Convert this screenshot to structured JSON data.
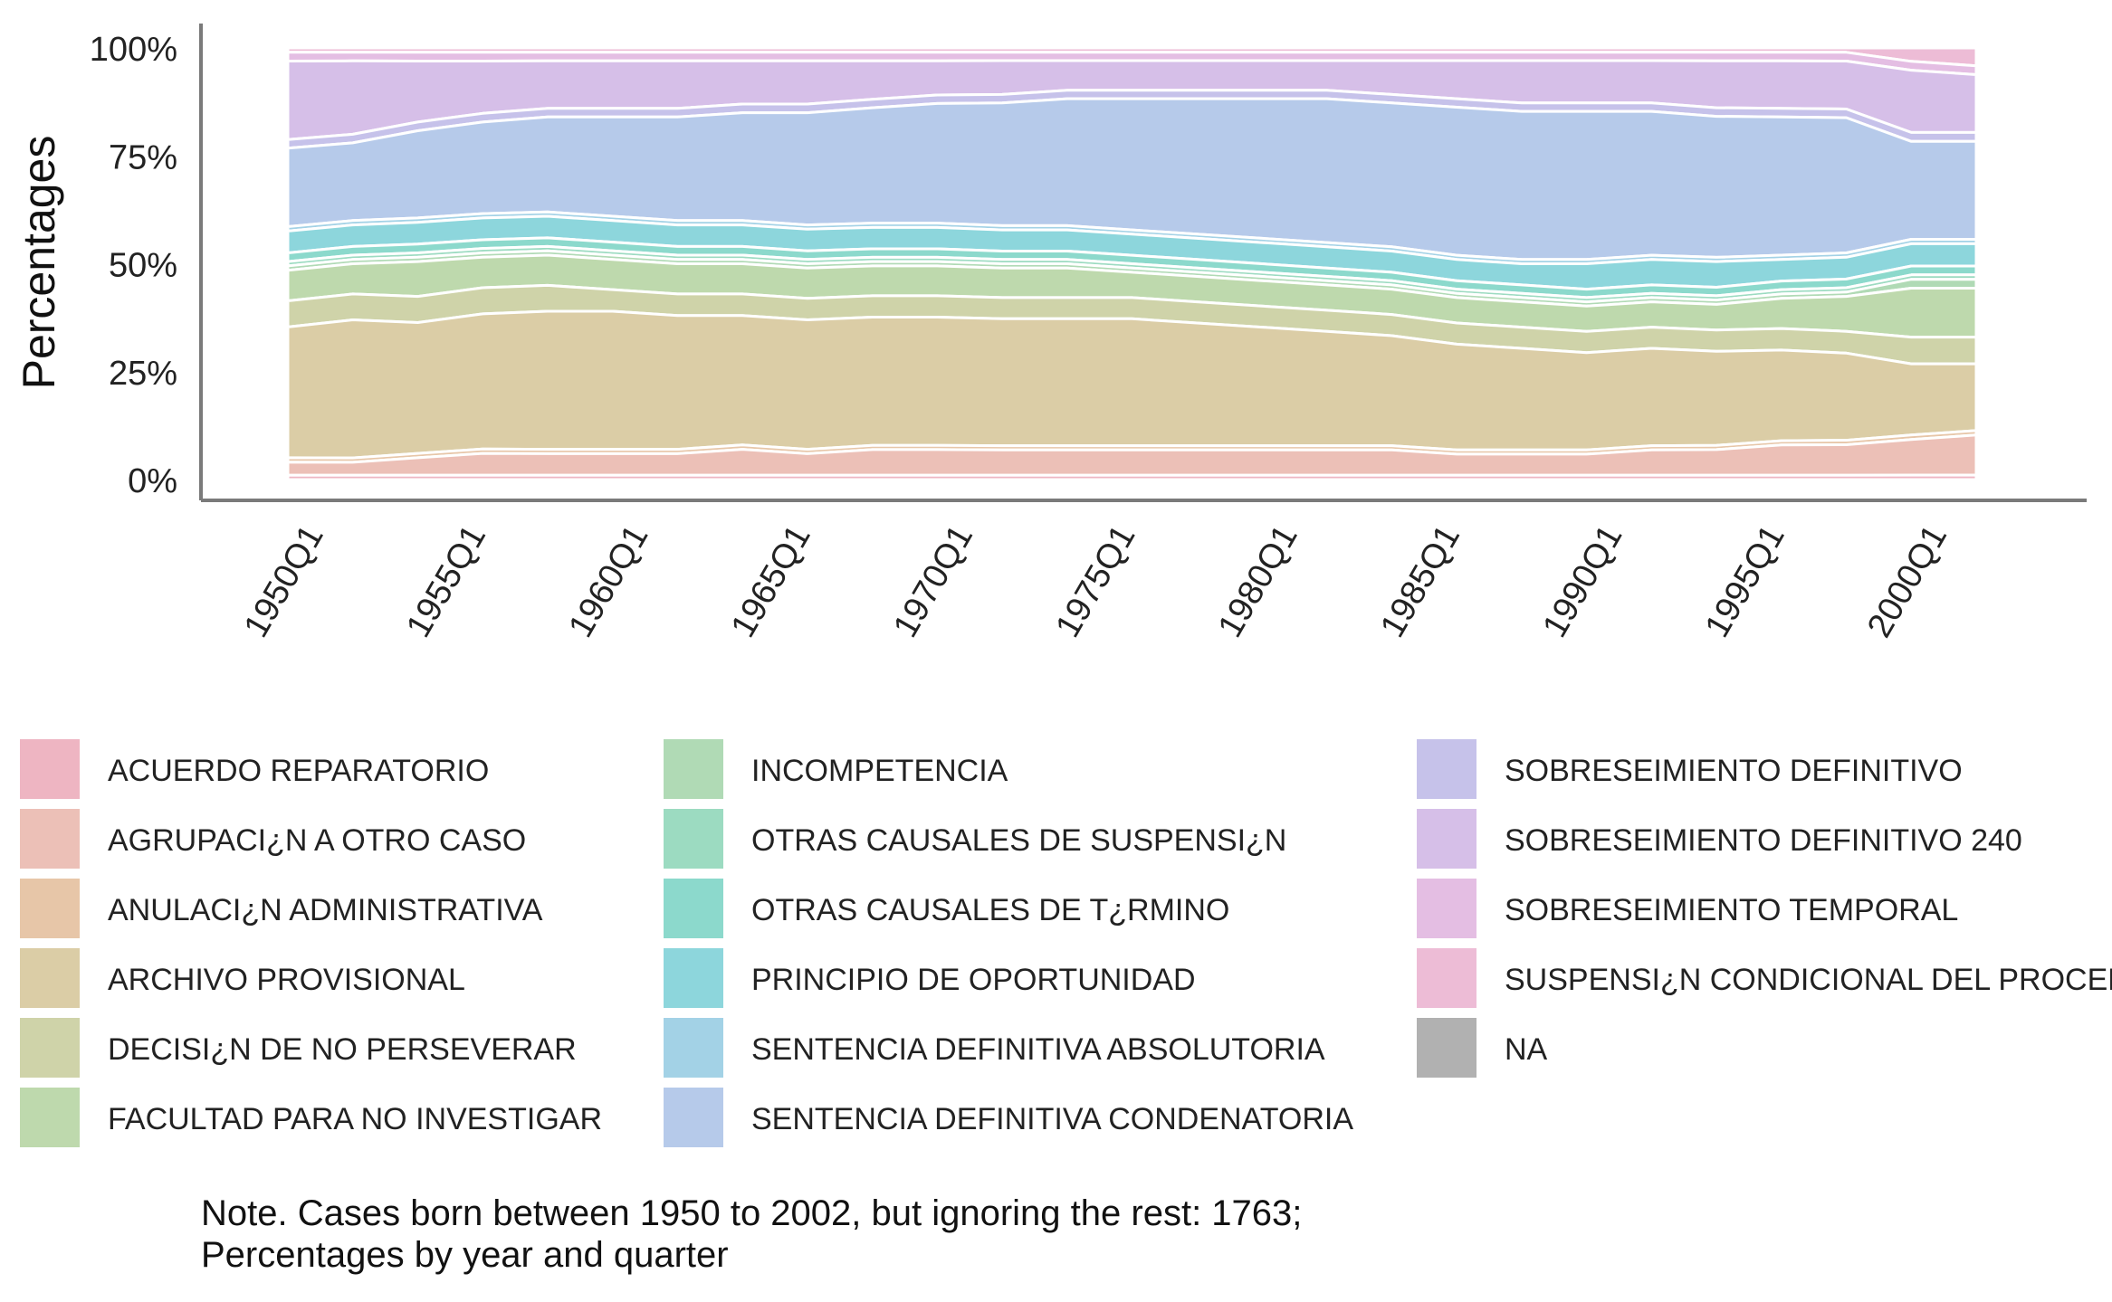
{
  "chart_data": {
    "type": "area",
    "stacked": true,
    "normalized_percent": true,
    "ylabel": "Percentages",
    "xlabel": "",
    "ylim": [
      0,
      100
    ],
    "y_ticks": [
      "0%",
      "25%",
      "50%",
      "75%",
      "100%"
    ],
    "x_ticks": [
      "1950Q1",
      "1955Q1",
      "1960Q1",
      "1965Q1",
      "1970Q1",
      "1975Q1",
      "1980Q1",
      "1985Q1",
      "1990Q1",
      "1995Q1",
      "2000Q1"
    ],
    "x": [
      1950,
      1952,
      1954,
      1956,
      1958,
      1960,
      1962,
      1964,
      1966,
      1968,
      1970,
      1972,
      1974,
      1976,
      1978,
      1980,
      1982,
      1984,
      1986,
      1988,
      1990,
      1992,
      1994,
      1996,
      1998,
      2000,
      2002
    ],
    "x_start": 1950,
    "x_end": 2002.25,
    "grid": false,
    "legend_position": "bottom",
    "series": [
      {
        "name": "ACUERDO REPARATORIO",
        "color": "#eeb5c2",
        "values": [
          1,
          1,
          1,
          1,
          1,
          1,
          1,
          1,
          1,
          1,
          1,
          1,
          1,
          1,
          1,
          1,
          1,
          1,
          1,
          1,
          1,
          1,
          1,
          1,
          1,
          1,
          1
        ]
      },
      {
        "name": "AGRUPACI¿N A OTRO CASO",
        "color": "#ecc0b7",
        "values": [
          3,
          3,
          4,
          5,
          5,
          5,
          5,
          6,
          5,
          6,
          6,
          6,
          6,
          6,
          6,
          6,
          6,
          6,
          5,
          5,
          5,
          6,
          6,
          7,
          7,
          8,
          9
        ]
      },
      {
        "name": "ANULACI¿N ADMINISTRATIVA",
        "color": "#e7c6a8",
        "values": [
          1,
          1,
          1,
          1,
          1,
          1,
          1,
          1,
          1,
          1,
          1,
          1,
          1,
          1,
          1,
          1,
          1,
          1,
          1,
          1,
          1,
          1,
          1,
          1,
          1,
          1,
          1
        ]
      },
      {
        "name": "ARCHIVO PROVISIONAL",
        "color": "#dbcda6",
        "values": [
          30,
          32,
          30,
          31,
          32,
          32,
          31,
          30,
          30,
          30,
          30,
          30,
          30,
          30,
          29,
          28,
          27,
          26,
          25,
          24,
          23,
          23,
          22,
          21,
          20,
          16,
          15
        ]
      },
      {
        "name": "DECISI¿N DE NO PERSEVERAR",
        "color": "#cfd3a9",
        "values": [
          6,
          6,
          6,
          6,
          6,
          5,
          5,
          5,
          5,
          5,
          5,
          5,
          5,
          5,
          5,
          5,
          5,
          5,
          5,
          5,
          5,
          5,
          5,
          5,
          5,
          6,
          6
        ]
      },
      {
        "name": "FACULTAD PARA NO INVESTIGAR",
        "color": "#bed9ad",
        "values": [
          7,
          7,
          8,
          7,
          7,
          7,
          7,
          7,
          7,
          7,
          7,
          7,
          7,
          6,
          6,
          6,
          6,
          6,
          6,
          6,
          6,
          6,
          6,
          7,
          8,
          11,
          11
        ]
      },
      {
        "name": "INCOMPETENCIA",
        "color": "#b0dab5",
        "values": [
          1,
          1,
          1,
          1,
          1,
          1,
          1,
          1,
          1,
          1,
          1,
          1,
          1,
          1,
          1,
          1,
          1,
          1,
          1,
          1,
          1,
          1,
          1,
          1,
          1,
          2,
          2
        ]
      },
      {
        "name": "OTRAS CAUSALES DE SUSPENSI¿N",
        "color": "#9cdbc1",
        "values": [
          1,
          1,
          1,
          1,
          1,
          1,
          1,
          1,
          1,
          1,
          1,
          1,
          1,
          1,
          1,
          1,
          1,
          1,
          1,
          1,
          1,
          1,
          1,
          1,
          1,
          1,
          1
        ]
      },
      {
        "name": "OTRAS CAUSALES DE T¿RMINO",
        "color": "#8cd9cc",
        "values": [
          2,
          2,
          2,
          2,
          2,
          2,
          2,
          2,
          2,
          2,
          2,
          2,
          2,
          2,
          2,
          2,
          2,
          2,
          2,
          2,
          2,
          2,
          2,
          2,
          2,
          2,
          2
        ]
      },
      {
        "name": "PRINCIPIO DE OPORTUNIDAD",
        "color": "#8dd6dc",
        "values": [
          5,
          5,
          5,
          5,
          5,
          5,
          5,
          5,
          5,
          5,
          5,
          5,
          5,
          5,
          5,
          5,
          5,
          5,
          5,
          5,
          6,
          6,
          6,
          5,
          5,
          5,
          5
        ]
      },
      {
        "name": "SENTENCIA DEFINITIVA ABSOLUTORIA",
        "color": "#a3d2e6",
        "values": [
          1,
          1,
          1,
          1,
          1,
          1,
          1,
          1,
          1,
          1,
          1,
          1,
          1,
          1,
          1,
          1,
          1,
          1,
          1,
          1,
          1,
          1,
          1,
          1,
          1,
          1,
          1
        ]
      },
      {
        "name": "SENTENCIA DEFINITIVA CONDENATORIA",
        "color": "#b6caea",
        "values": [
          18,
          18,
          20,
          21,
          22,
          23,
          24,
          25,
          26,
          27,
          28,
          29,
          30,
          31,
          32,
          33,
          34,
          34,
          35,
          35,
          35,
          34,
          33,
          32,
          31,
          22,
          22
        ]
      },
      {
        "name": "SOBRESEIMIENTO DEFINITIVO",
        "color": "#c6c2ea",
        "values": [
          2,
          2,
          2,
          2,
          2,
          2,
          2,
          2,
          2,
          2,
          2,
          2,
          2,
          2,
          2,
          2,
          2,
          2,
          2,
          2,
          2,
          2,
          2,
          2,
          2,
          2,
          2
        ]
      },
      {
        "name": "SOBRESEIMIENTO DEFINITIVO 240",
        "color": "#d6bfe8",
        "values": [
          18,
          17,
          14,
          12,
          11,
          11,
          11,
          10,
          10,
          9,
          8,
          8,
          7,
          7,
          7,
          7,
          7,
          8,
          9,
          10,
          10,
          10,
          11,
          11,
          11,
          14,
          13
        ]
      },
      {
        "name": "SOBRESEIMIENTO TEMPORAL",
        "color": "#e4bee3",
        "values": [
          2,
          2,
          2,
          2,
          2,
          2,
          2,
          2,
          2,
          2,
          2,
          2,
          2,
          2,
          2,
          2,
          2,
          2,
          2,
          2,
          2,
          2,
          2,
          2,
          2,
          2,
          2
        ]
      },
      {
        "name": "SUSPENSI¿N CONDICIONAL DEL PROCEDIMIENTO",
        "color": "#edbcd6",
        "values": [
          1,
          1,
          1,
          1,
          1,
          1,
          1,
          1,
          1,
          1,
          1,
          1,
          1,
          1,
          1,
          1,
          1,
          1,
          1,
          1,
          1,
          1,
          1,
          1,
          1,
          3,
          4
        ]
      },
      {
        "name": "NA",
        "color": "#b1b1b1",
        "values": [
          0,
          0,
          0,
          0,
          0,
          0,
          0,
          0,
          0,
          0,
          0,
          0,
          0,
          0,
          0,
          0,
          0,
          0,
          0,
          0,
          0,
          0,
          0,
          0,
          0,
          0,
          0
        ]
      }
    ]
  },
  "note": {
    "line1": "Note. Cases born between 1950 to 2002, but ignoring the rest: 1763;",
    "line2": "Percentages by year and quarter"
  }
}
